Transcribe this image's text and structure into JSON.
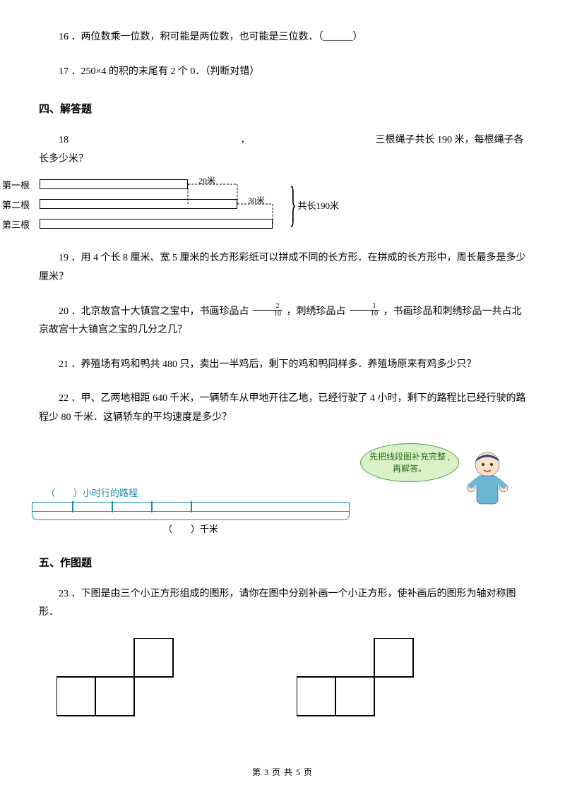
{
  "q16": "16 ．两位数乘一位数，积可能是两位数，也可能是三位数．（______）",
  "q17": "17 ．250×4 的积的末尾有 2 个 0．（判断对错）",
  "section4": "四、解答题",
  "q18": {
    "num": "18",
    "text": "三根绳子共长 190 米，每根绳子各长多少米？",
    "rows": [
      "第一根",
      "第二根",
      "第三根"
    ],
    "ext1": "20米",
    "ext2": "30米",
    "brace": "共长190米",
    "bar1_w": 210,
    "bar2_w": 280,
    "bar3_w": 330
  },
  "q19": "19 ．用 4 个长 8 厘米、宽 5 厘米的长方形彩纸可以拼成不同的长方形．在拼成的长方形中，周长最多是多少厘米？",
  "q20": {
    "pre": "20 ．北京故宫十大镇宫之宝中，书画珍品占",
    "f1n": "2",
    "f1d": "10",
    "mid": "，刺绣珍品占",
    "f2n": "1",
    "f2d": "10",
    "post": "，书画珍品和刺绣珍品一共占北京故宫十大镇宫之宝的几分之几？"
  },
  "q21": "21 ．养殖场有鸡和鸭共 480 只，卖出一半鸡后，剩下的鸡和鸭同样多．养殖场原来有鸡多少只？",
  "q22": {
    "text": "22 ．甲、乙两地相距 640 千米，一辆轿车从甲地开往乙地，已经行驶了 4 小时，剩下的路程比已经行驶的路程少 80 千米．这辆轿车的平均速度是多少？",
    "bubble": "先把线段图补充完整 , 再解答。",
    "label1": "（　　）小时行的路程",
    "label2": "（　　）千米",
    "tick_positions": [
      56,
      112,
      168,
      224
    ],
    "track_color": "#1a8aa8"
  },
  "section5": "五、作图题",
  "q23": "23 ．下图是由三个小正方形组成的图形，请你在图中分别补画一个小正方形，使补画后的图形为轴对称图形．",
  "sq_size": 55,
  "sq_stroke": "#000000",
  "footer": "第 3 页 共 5 页"
}
